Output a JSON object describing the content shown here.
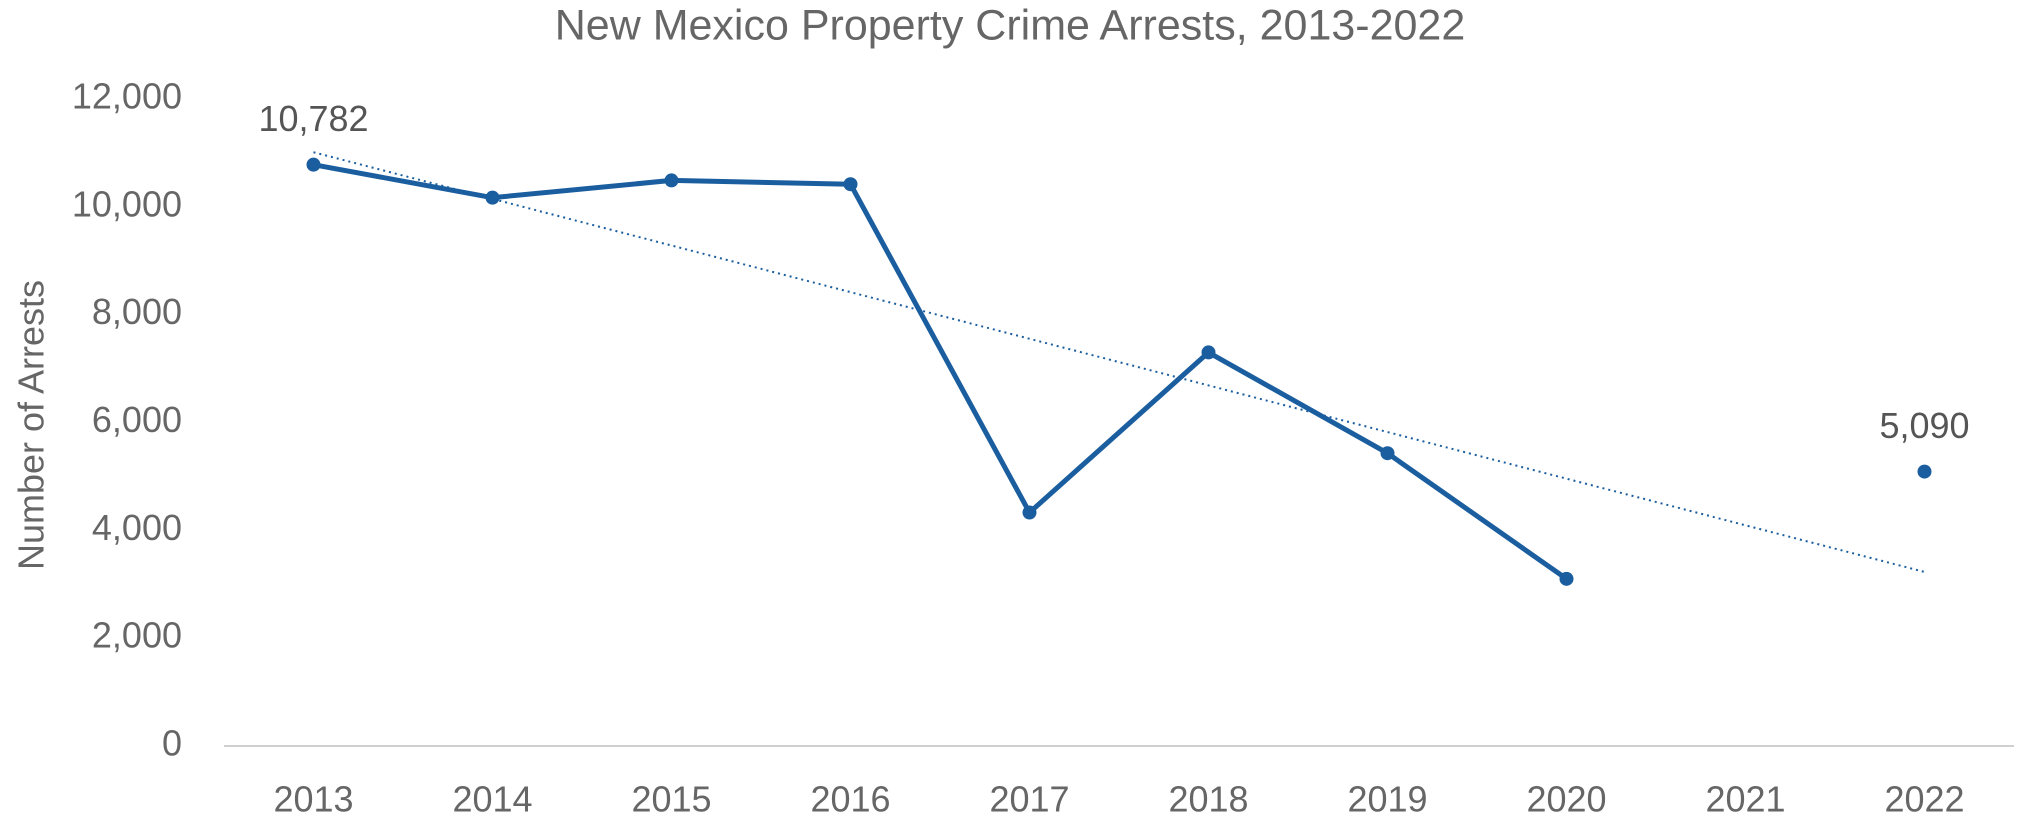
{
  "chart_data": {
    "type": "line",
    "title": "New Mexico Property Crime Arrests, 2013-2022",
    "y_label": "Number of Arrests",
    "categories": [
      "2013",
      "2014",
      "2015",
      "2016",
      "2017",
      "2018",
      "2019",
      "2020",
      "2021",
      "2022"
    ],
    "series": [
      {
        "name": "Property Crime Arrests",
        "color": "#1b5e9f",
        "values": [
          10782,
          10170,
          10490,
          10420,
          4330,
          7300,
          5430,
          3100,
          null,
          5090
        ],
        "value_labels": [
          "10,782",
          null,
          null,
          null,
          null,
          null,
          null,
          null,
          null,
          "5,090"
        ]
      }
    ],
    "ylim": [
      0,
      12000
    ],
    "yticks": [
      0,
      {
        "value": 2000,
        "label": "2,000"
      },
      {
        "value": 4000,
        "label": "4,000"
      },
      {
        "value": 6000,
        "label": "6,000"
      },
      {
        "value": 8000,
        "label": "8,000"
      },
      {
        "value": 10000,
        "label": "10,000"
      },
      {
        "value": 12000,
        "label": "12,000"
      }
    ],
    "grid": false,
    "trendline": "linear"
  }
}
